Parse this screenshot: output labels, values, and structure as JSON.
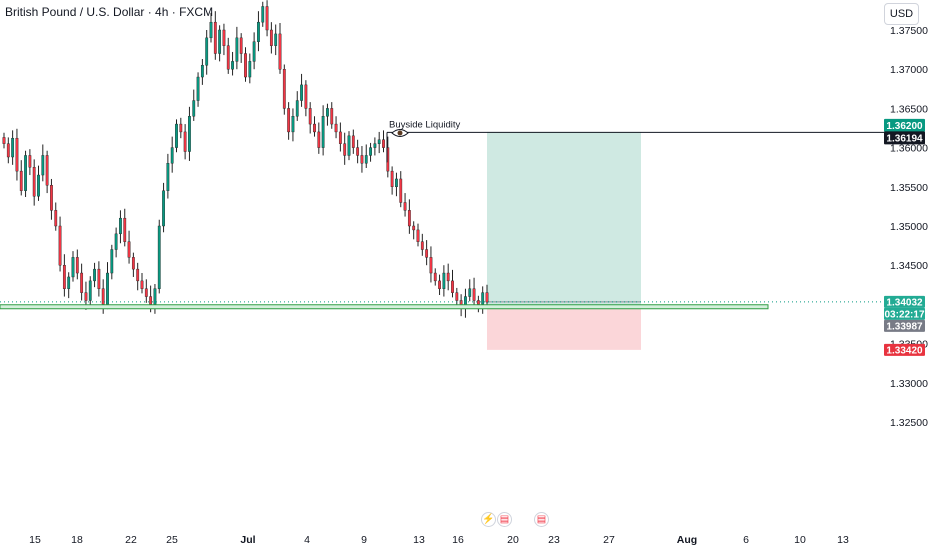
{
  "header": {
    "title": "British Pound / U.S. Dollar · 4h · FXCM",
    "currency": "USD"
  },
  "colors": {
    "up_candle": "#089981",
    "down_candle": "#f23645",
    "profit_zone": "#cfe9e2",
    "loss_zone": "#fbd6d9",
    "support_line": "#2f9e44",
    "badge_target": "#089981",
    "badge_liquidity": "#131722",
    "badge_current": "#22ab94",
    "badge_entry": "#787b86",
    "badge_stop": "#e8333f"
  },
  "chart_data": {
    "type": "candlestick",
    "symbol": "GBPUSD",
    "timeframe": "4h",
    "y_ticks": [
      "1.37500",
      "1.37000",
      "1.36500",
      "1.36000",
      "1.35500",
      "1.35000",
      "1.34500",
      "1.33500",
      "1.33000",
      "1.32500"
    ],
    "x_ticks": [
      "15",
      "18",
      "22",
      "25",
      "Jul",
      "4",
      "9",
      "13",
      "16",
      "20",
      "23",
      "27",
      "Aug",
      "6",
      "10",
      "13"
    ],
    "price_badges": {
      "target": "1.36200",
      "liquidity_level": "1.36194",
      "current_price": "1.34032",
      "countdown": "03:22:17",
      "entry": "1.33987",
      "stop": "1.33420"
    },
    "annotations": {
      "liquidity_label": "Buyside Liquidity",
      "eye_icon": "eye-icon"
    },
    "position": {
      "kind": "long",
      "entry": 1.33987,
      "target": 1.362,
      "stop": 1.3342
    },
    "support_level": 1.3397,
    "buyside_liquidity": 1.36194,
    "candle_closes": [
      1.3605,
      1.3588,
      1.3612,
      1.357,
      1.3545,
      1.359,
      1.3575,
      1.3538,
      1.3565,
      1.359,
      1.3552,
      1.352,
      1.35,
      1.345,
      1.342,
      1.3435,
      1.346,
      1.344,
      1.3415,
      1.3405,
      1.343,
      1.3445,
      1.342,
      1.34,
      1.344,
      1.347,
      1.349,
      1.351,
      1.348,
      1.346,
      1.3445,
      1.343,
      1.342,
      1.341,
      1.34,
      1.342,
      1.35,
      1.3545,
      1.358,
      1.36,
      1.363,
      1.362,
      1.3595,
      1.364,
      1.366,
      1.369,
      1.3705,
      1.374,
      1.376,
      1.372,
      1.375,
      1.373,
      1.37,
      1.371,
      1.374,
      1.372,
      1.369,
      1.371,
      1.3735,
      1.376,
      1.378,
      1.375,
      1.373,
      1.3745,
      1.37,
      1.365,
      1.362,
      1.364,
      1.366,
      1.368,
      1.365,
      1.363,
      1.362,
      1.36,
      1.364,
      1.365,
      1.363,
      1.362,
      1.3605,
      1.359,
      1.3615,
      1.36,
      1.359,
      1.358,
      1.359,
      1.36,
      1.3605,
      1.361,
      1.36,
      1.357,
      1.355,
      1.356,
      1.353,
      1.352,
      1.35,
      1.3495,
      1.348,
      1.347,
      1.346,
      1.344,
      1.343,
      1.342,
      1.344,
      1.343,
      1.3415,
      1.3405,
      1.3395,
      1.341,
      1.342,
      1.3405,
      1.34,
      1.3415,
      1.3403
    ]
  }
}
